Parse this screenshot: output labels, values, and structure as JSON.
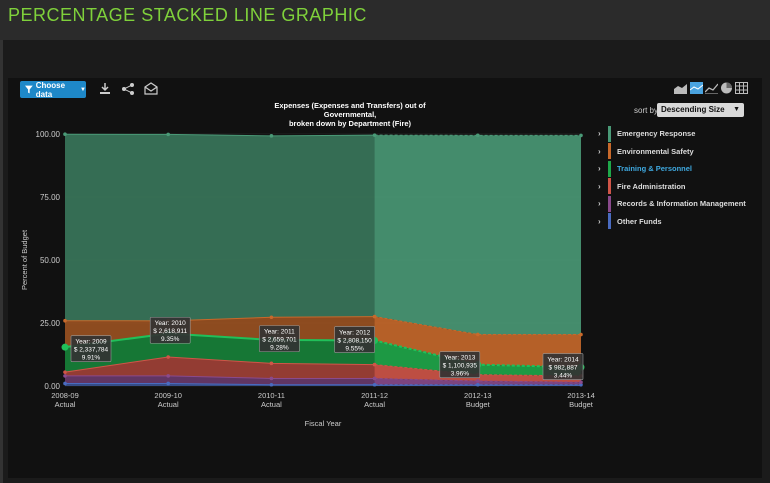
{
  "page": {
    "title": "PERCENTAGE STACKED LINE GRAPHIC"
  },
  "toolbar": {
    "choose_data_label": "Choose data",
    "icons": [
      "filter-icon",
      "download-icon",
      "share-icon",
      "email-icon"
    ],
    "view_icons": [
      "area-chart-icon",
      "stacked-area-icon",
      "line-chart-icon",
      "pie-chart-icon",
      "table-icon"
    ]
  },
  "sort": {
    "label": "sort by",
    "value": "Descending Size"
  },
  "colors": {
    "emergency_response": "#4a9a77",
    "environmental_safety": "#c8692b",
    "training_personnel": "#1fa84a",
    "fire_administration": "#d05548",
    "records": "#8a4a8c",
    "other_funds": "#4a6bc0",
    "background": "#111111",
    "accent": "#1e88c8"
  },
  "chart_data": {
    "type": "area",
    "stacked": "percent",
    "title": "Expenses (Expenses and Transfers) out of Governmental, broken down by Department (Fire)",
    "title_lines": [
      "Expenses (Expenses and Transfers) out of",
      "Governmental,",
      "broken down by Department (Fire)"
    ],
    "xlabel": "Fiscal Year",
    "ylabel": "Percent of Budget",
    "ylim": [
      0,
      100
    ],
    "yticks": [
      "100.00",
      "75.00",
      "50.00",
      "25.00",
      "0.00"
    ],
    "categories": [
      [
        "2008-09",
        "Actual"
      ],
      [
        "2009-10",
        "Actual"
      ],
      [
        "2010-11",
        "Actual"
      ],
      [
        "2011-12",
        "Actual"
      ],
      [
        "2012-13",
        "Budget"
      ],
      [
        "2013-14",
        "Budget"
      ]
    ],
    "legend_position": "right",
    "series": [
      {
        "name": "Emergency Response",
        "values": [
          74.0,
          74.0,
          72.0,
          72.0,
          79.0,
          79.0
        ]
      },
      {
        "name": "Environmental Safety",
        "values": [
          10.5,
          5.0,
          9.0,
          9.5,
          12.0,
          13.0
        ]
      },
      {
        "name": "Training & Personnel",
        "values": [
          9.91,
          9.35,
          9.28,
          9.55,
          3.96,
          3.44
        ]
      },
      {
        "name": "Fire Administration",
        "values": [
          1.5,
          7.5,
          6.0,
          5.5,
          2.5,
          2.5
        ]
      },
      {
        "name": "Records & Information Management",
        "values": [
          3.0,
          3.0,
          2.5,
          2.5,
          1.5,
          1.0
        ]
      },
      {
        "name": "Other Funds",
        "values": [
          1.0,
          1.0,
          0.5,
          0.5,
          0.5,
          0.5
        ]
      }
    ],
    "tooltips": [
      {
        "year": "Year: 2009",
        "amount": "$ 2,337,784",
        "pct": "9.91%"
      },
      {
        "year": "Year: 2010",
        "amount": "$ 2,618,911",
        "pct": "9.35%"
      },
      {
        "year": "Year: 2011",
        "amount": "$ 2,659,701",
        "pct": "9.28%"
      },
      {
        "year": "Year: 2012",
        "amount": "$ 2,808,150",
        "pct": "9.55%"
      },
      {
        "year": "Year: 2013",
        "amount": "$ 1,100,935",
        "pct": "3.96%"
      },
      {
        "year": "Year: 2014",
        "amount": "$ 982,887",
        "pct": "3.44%"
      }
    ],
    "highlighted_series": "Training & Personnel",
    "projection_starts_after": "2011-12"
  }
}
